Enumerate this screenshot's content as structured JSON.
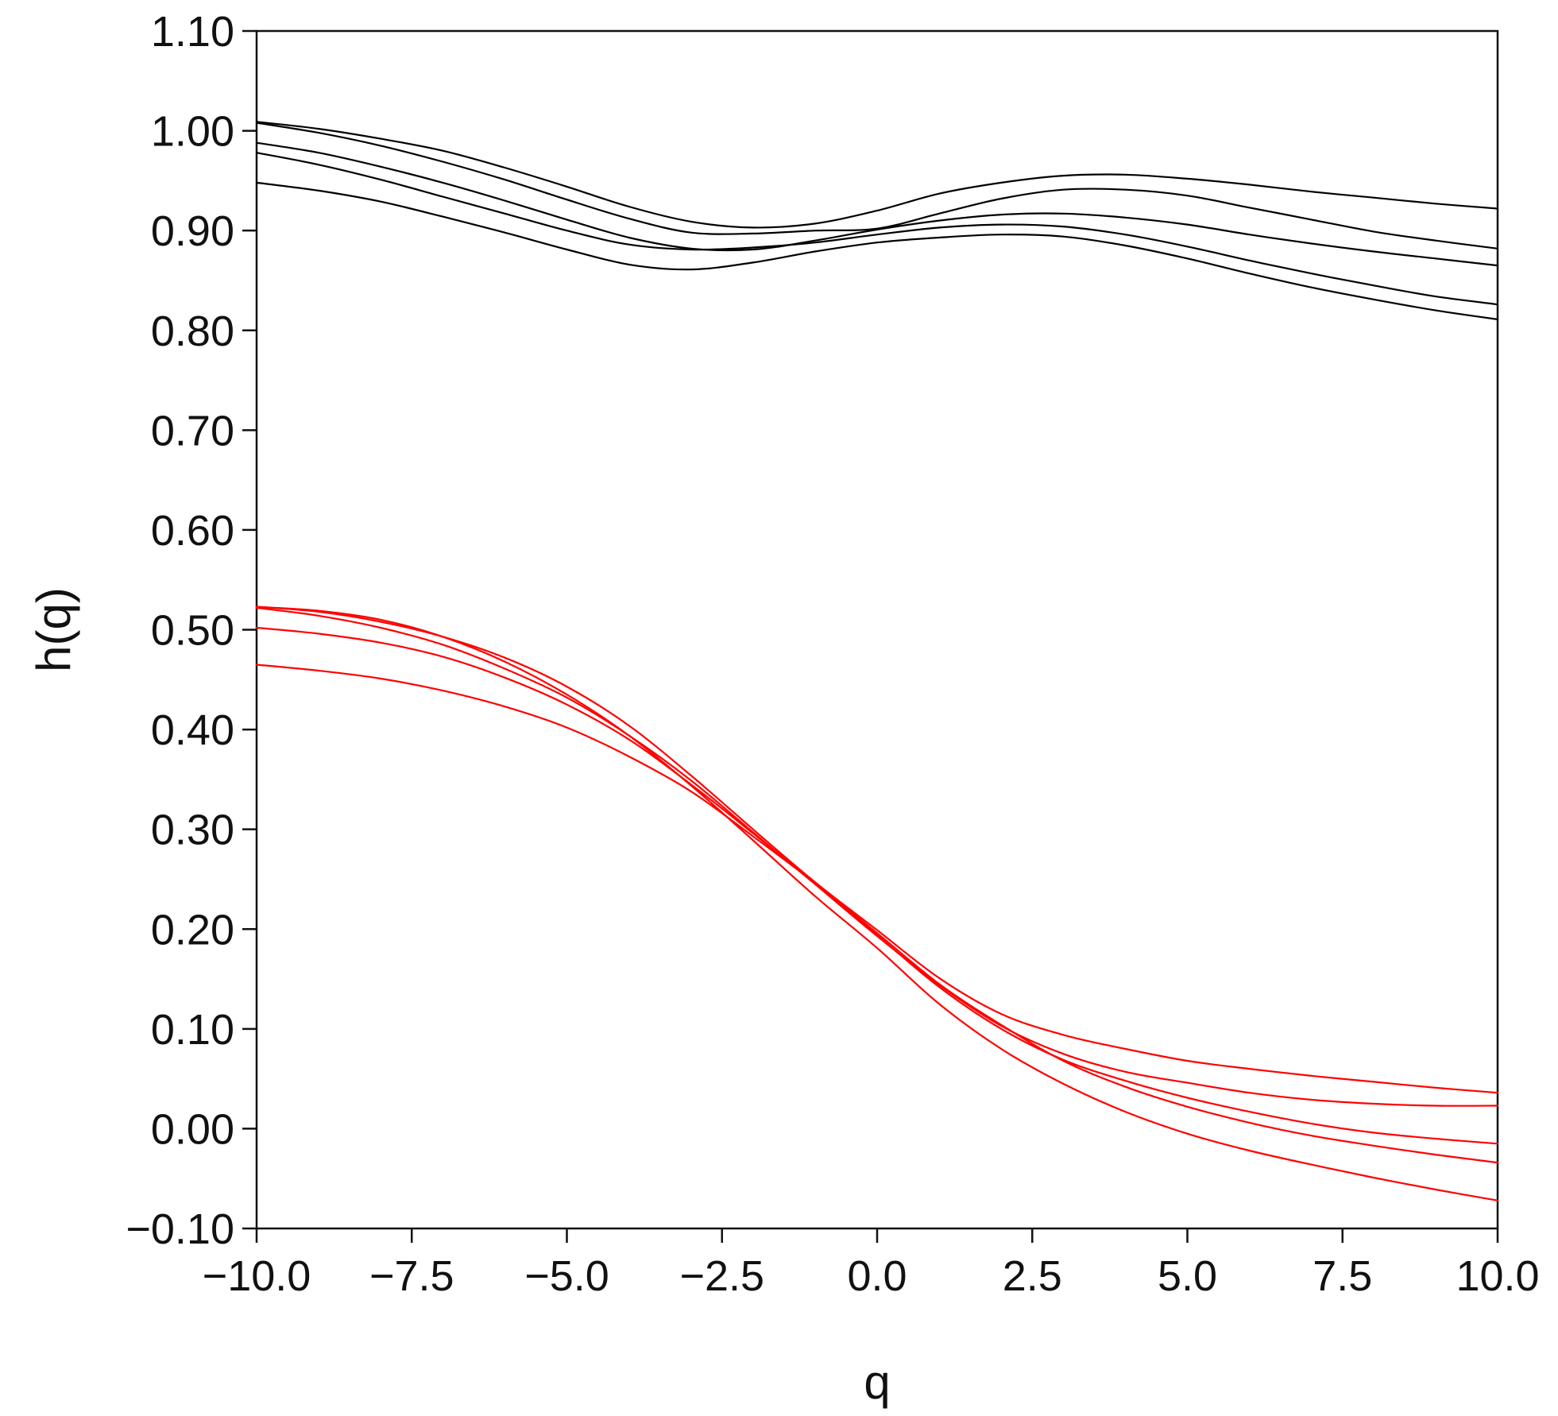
{
  "chart_data": {
    "type": "line",
    "title": "",
    "xlabel": "q",
    "ylabel": "h(q)",
    "xlim": [
      -10,
      10
    ],
    "ylim": [
      -0.1,
      1.1
    ],
    "grid": false,
    "legend": "none",
    "x_ticks": [
      -10,
      -7.5,
      -5,
      -2.5,
      0,
      2.5,
      5,
      7.5,
      10
    ],
    "x_tick_labels": [
      "−10.0",
      "−7.5",
      "−5.0",
      "−2.5",
      "0.0",
      "2.5",
      "5.0",
      "7.5",
      "10.0"
    ],
    "y_ticks": [
      -0.1,
      0,
      0.1,
      0.2,
      0.3,
      0.4,
      0.5,
      0.6,
      0.7,
      0.8,
      0.9,
      1.0,
      1.1
    ],
    "y_tick_labels": [
      "−0.10",
      "0.00",
      "0.10",
      "0.20",
      "0.30",
      "0.40",
      "0.50",
      "0.60",
      "0.70",
      "0.80",
      "0.90",
      "1.00",
      "1.10"
    ],
    "x": [
      -10,
      -9,
      -8,
      -7,
      -6,
      -5,
      -4,
      -3,
      -2,
      -1,
      0,
      1,
      2,
      3,
      4,
      5,
      6,
      7,
      8,
      9,
      10
    ],
    "series": [
      {
        "color": "#000000",
        "values": [
          1.009,
          1.002,
          0.992,
          0.98,
          0.963,
          0.944,
          0.924,
          0.909,
          0.903,
          0.907,
          0.92,
          0.937,
          0.948,
          0.955,
          0.956,
          0.952,
          0.946,
          0.939,
          0.933,
          0.927,
          0.922
        ]
      },
      {
        "color": "#000000",
        "values": [
          1.008,
          0.998,
          0.985,
          0.969,
          0.951,
          0.931,
          0.912,
          0.898,
          0.897,
          0.9,
          0.902,
          0.917,
          0.932,
          0.941,
          0.941,
          0.935,
          0.923,
          0.911,
          0.899,
          0.89,
          0.882
        ]
      },
      {
        "color": "#000000",
        "values": [
          0.988,
          0.978,
          0.964,
          0.948,
          0.93,
          0.911,
          0.893,
          0.882,
          0.881,
          0.89,
          0.901,
          0.91,
          0.916,
          0.917,
          0.913,
          0.906,
          0.896,
          0.887,
          0.879,
          0.872,
          0.865
        ]
      },
      {
        "color": "#000000",
        "values": [
          0.978,
          0.966,
          0.951,
          0.934,
          0.917,
          0.9,
          0.886,
          0.881,
          0.883,
          0.888,
          0.896,
          0.903,
          0.906,
          0.904,
          0.896,
          0.884,
          0.87,
          0.857,
          0.845,
          0.834,
          0.826
        ]
      },
      {
        "color": "#000000",
        "values": [
          0.948,
          0.94,
          0.929,
          0.914,
          0.898,
          0.881,
          0.866,
          0.861,
          0.868,
          0.879,
          0.888,
          0.893,
          0.896,
          0.894,
          0.885,
          0.872,
          0.857,
          0.843,
          0.831,
          0.82,
          0.811
        ]
      },
      {
        "color": "#ff0000",
        "values": [
          0.523,
          0.518,
          0.508,
          0.493,
          0.472,
          0.443,
          0.404,
          0.354,
          0.3,
          0.247,
          0.199,
          0.151,
          0.115,
          0.094,
          0.08,
          0.068,
          0.06,
          0.053,
          0.047,
          0.041,
          0.036
        ]
      },
      {
        "color": "#ff0000",
        "values": [
          0.522,
          0.514,
          0.502,
          0.485,
          0.461,
          0.432,
          0.394,
          0.349,
          0.297,
          0.245,
          0.193,
          0.144,
          0.103,
          0.075,
          0.057,
          0.046,
          0.036,
          0.029,
          0.025,
          0.023,
          0.023
        ]
      },
      {
        "color": "#ff0000",
        "values": [
          0.502,
          0.496,
          0.487,
          0.473,
          0.452,
          0.425,
          0.39,
          0.345,
          0.296,
          0.246,
          0.194,
          0.142,
          0.1,
          0.069,
          0.048,
          0.031,
          0.017,
          0.005,
          -0.004,
          -0.01,
          -0.015
        ]
      },
      {
        "color": "#ff0000",
        "values": [
          0.465,
          0.459,
          0.451,
          0.439,
          0.423,
          0.402,
          0.373,
          0.338,
          0.293,
          0.246,
          0.196,
          0.145,
          0.104,
          0.068,
          0.042,
          0.022,
          0.006,
          -0.007,
          -0.017,
          -0.026,
          -0.034
        ]
      },
      {
        "color": "#ff0000",
        "values": [
          0.523,
          0.519,
          0.51,
          0.493,
          0.468,
          0.435,
          0.394,
          0.344,
          0.289,
          0.233,
          0.181,
          0.125,
          0.08,
          0.045,
          0.017,
          -0.005,
          -0.022,
          -0.036,
          -0.049,
          -0.061,
          -0.072
        ]
      }
    ]
  }
}
